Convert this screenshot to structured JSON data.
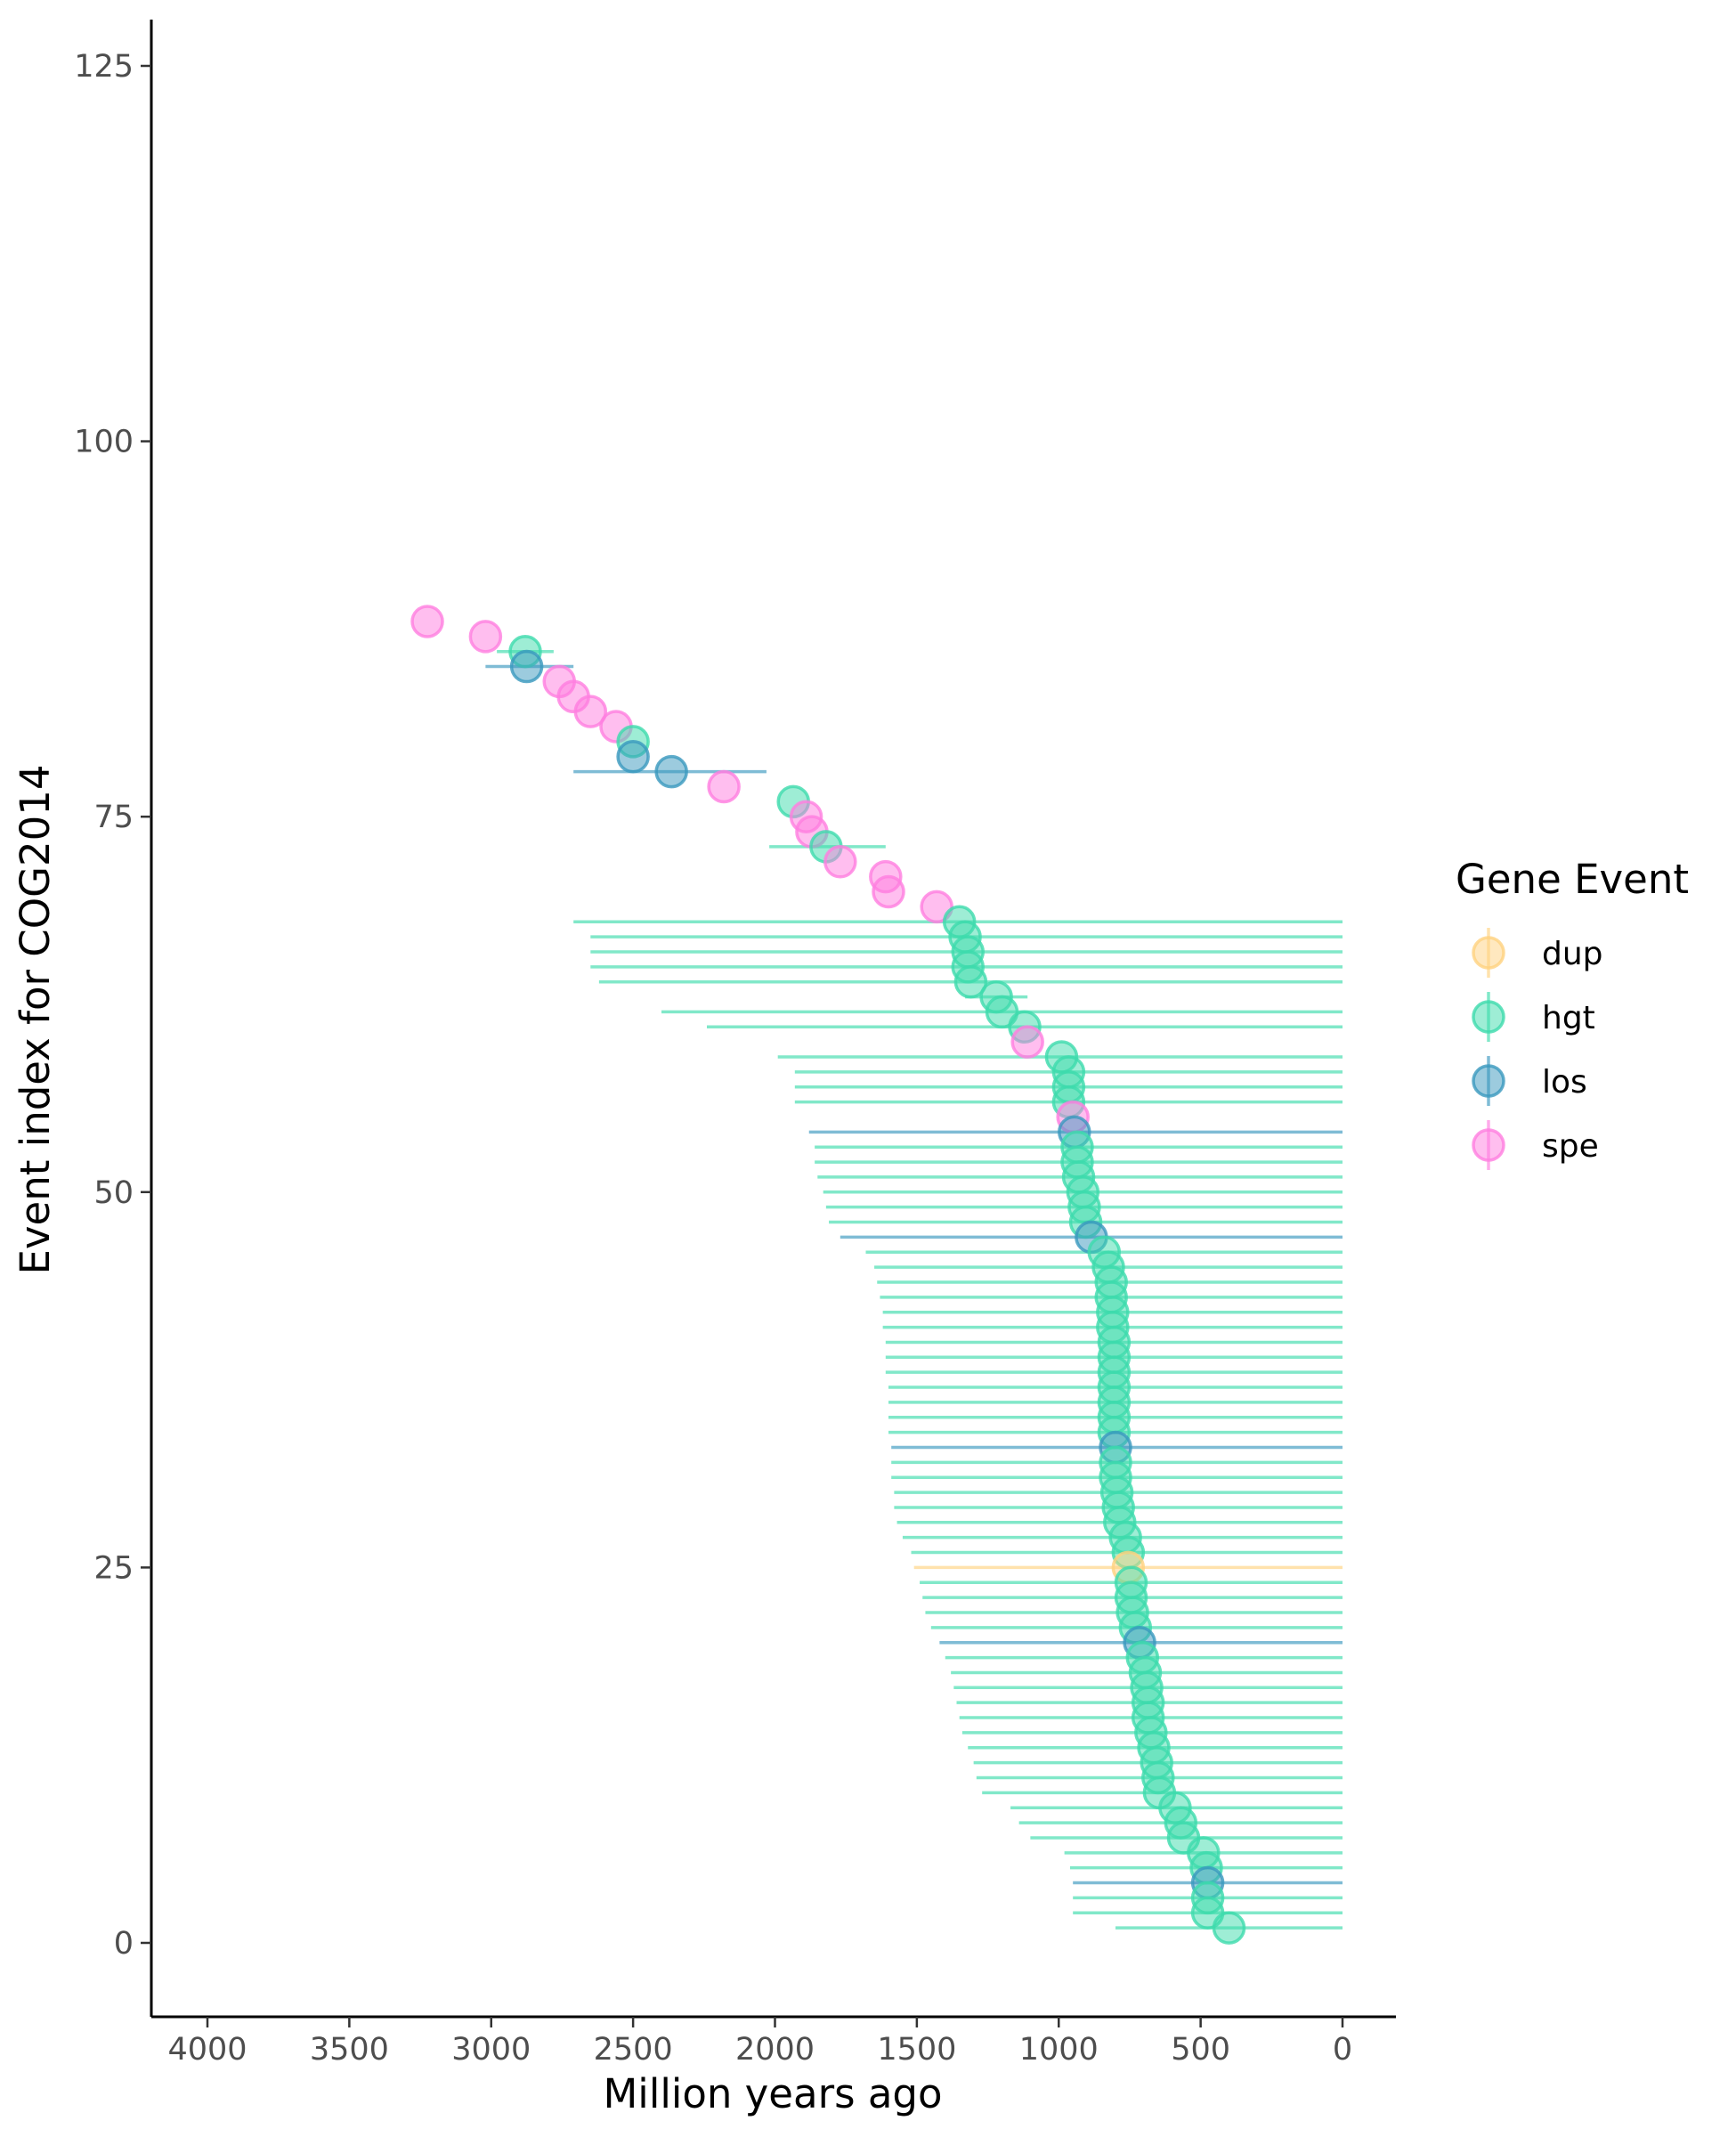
{
  "chart_data": {
    "type": "scatter",
    "title": "",
    "xlabel": "Million years ago",
    "ylabel": "Event index for COG2014",
    "xlim": [
      4200,
      -200
    ],
    "ylim": [
      -5,
      128
    ],
    "x_reversed": true,
    "x_ticks": [
      4000,
      3500,
      3000,
      2500,
      2000,
      1500,
      1000,
      500,
      0
    ],
    "x_tick_labels": [
      "4000",
      "3500",
      "3000",
      "2500",
      "2000",
      "1500",
      "1000",
      "500",
      "0"
    ],
    "y_ticks": [
      0,
      25,
      50,
      75,
      100,
      125
    ],
    "y_tick_labels": [
      "0",
      "25",
      "50",
      "75",
      "100",
      "125"
    ],
    "grid": false,
    "legend": {
      "title": "Gene Event",
      "position": "right",
      "entries": [
        {
          "key": "dup",
          "label": "dup",
          "color": "#FFD27F"
        },
        {
          "key": "hgt",
          "label": "hgt",
          "color": "#3DDBAC"
        },
        {
          "key": "los",
          "label": "los",
          "color": "#3A98BE"
        },
        {
          "key": "spe",
          "label": "spe",
          "color": "#FF7EE0"
        }
      ]
    },
    "points": [
      {
        "i": 88,
        "x": 3225,
        "type": "spe"
      },
      {
        "i": 87,
        "x": 3020,
        "type": "spe"
      },
      {
        "i": 86,
        "x": 2880,
        "type": "hgt",
        "xmin": 2780,
        "xmax": 2980
      },
      {
        "i": 85,
        "x": 2875,
        "type": "los",
        "xmin": 2710,
        "xmax": 3020
      },
      {
        "i": 84,
        "x": 2760,
        "type": "spe"
      },
      {
        "i": 83,
        "x": 2710,
        "type": "spe"
      },
      {
        "i": 82,
        "x": 2650,
        "type": "spe"
      },
      {
        "i": 81,
        "x": 2560,
        "type": "spe"
      },
      {
        "i": 80,
        "x": 2500,
        "type": "hgt"
      },
      {
        "i": 79,
        "x": 2500,
        "type": "los"
      },
      {
        "i": 78,
        "x": 2365,
        "type": "los",
        "xmin": 2030,
        "xmax": 2710
      },
      {
        "i": 77,
        "x": 2180,
        "type": "spe"
      },
      {
        "i": 76,
        "x": 1935,
        "type": "hgt"
      },
      {
        "i": 75,
        "x": 1890,
        "type": "spe"
      },
      {
        "i": 74,
        "x": 1870,
        "type": "spe"
      },
      {
        "i": 73,
        "x": 1820,
        "type": "hgt",
        "xmin": 1610,
        "xmax": 2020
      },
      {
        "i": 72,
        "x": 1770,
        "type": "spe"
      },
      {
        "i": 71,
        "x": 1610,
        "type": "spe"
      },
      {
        "i": 70,
        "x": 1600,
        "type": "spe"
      },
      {
        "i": 69,
        "x": 1430,
        "type": "spe"
      },
      {
        "i": 68,
        "x": 1350,
        "type": "hgt",
        "xmin": 0,
        "xmax": 2710
      },
      {
        "i": 67,
        "x": 1330,
        "type": "hgt",
        "xmin": 0,
        "xmax": 2650
      },
      {
        "i": 66,
        "x": 1320,
        "type": "hgt",
        "xmin": 0,
        "xmax": 2650
      },
      {
        "i": 65,
        "x": 1320,
        "type": "hgt",
        "xmin": 0,
        "xmax": 2650
      },
      {
        "i": 64,
        "x": 1310,
        "type": "hgt",
        "xmin": 0,
        "xmax": 2620
      },
      {
        "i": 63,
        "x": 1220,
        "type": "hgt",
        "xmin": 1110,
        "xmax": 1330
      },
      {
        "i": 62,
        "x": 1200,
        "type": "hgt",
        "xmin": 0,
        "xmax": 2400
      },
      {
        "i": 61,
        "x": 1120,
        "type": "hgt",
        "xmin": 0,
        "xmax": 2240
      },
      {
        "i": 60,
        "x": 1110,
        "type": "spe"
      },
      {
        "i": 59,
        "x": 990,
        "type": "hgt",
        "xmin": 0,
        "xmax": 1990
      },
      {
        "i": 58,
        "x": 965,
        "type": "hgt",
        "xmin": 0,
        "xmax": 1930
      },
      {
        "i": 57,
        "x": 965,
        "type": "hgt",
        "xmin": 0,
        "xmax": 1930
      },
      {
        "i": 56,
        "x": 965,
        "type": "hgt",
        "xmin": 0,
        "xmax": 1930
      },
      {
        "i": 55,
        "x": 950,
        "type": "spe"
      },
      {
        "i": 54,
        "x": 945,
        "type": "los",
        "xmin": 0,
        "xmax": 1880
      },
      {
        "i": 53,
        "x": 935,
        "type": "hgt",
        "xmin": 0,
        "xmax": 1860
      },
      {
        "i": 52,
        "x": 935,
        "type": "hgt",
        "xmin": 0,
        "xmax": 1860
      },
      {
        "i": 51,
        "x": 930,
        "type": "hgt",
        "xmin": 0,
        "xmax": 1850
      },
      {
        "i": 50,
        "x": 915,
        "type": "hgt",
        "xmin": 0,
        "xmax": 1830
      },
      {
        "i": 49,
        "x": 910,
        "type": "hgt",
        "xmin": 0,
        "xmax": 1820
      },
      {
        "i": 48,
        "x": 905,
        "type": "hgt",
        "xmin": 0,
        "xmax": 1810
      },
      {
        "i": 47,
        "x": 885,
        "type": "los",
        "xmin": 0,
        "xmax": 1770
      },
      {
        "i": 46,
        "x": 840,
        "type": "hgt",
        "xmin": 0,
        "xmax": 1680
      },
      {
        "i": 45,
        "x": 825,
        "type": "hgt",
        "xmin": 0,
        "xmax": 1650
      },
      {
        "i": 44,
        "x": 815,
        "type": "hgt",
        "xmin": 0,
        "xmax": 1640
      },
      {
        "i": 43,
        "x": 815,
        "type": "hgt",
        "xmin": 0,
        "xmax": 1630
      },
      {
        "i": 42,
        "x": 810,
        "type": "hgt",
        "xmin": 0,
        "xmax": 1620
      },
      {
        "i": 41,
        "x": 810,
        "type": "hgt",
        "xmin": 0,
        "xmax": 1620
      },
      {
        "i": 40,
        "x": 805,
        "type": "hgt",
        "xmin": 0,
        "xmax": 1610
      },
      {
        "i": 39,
        "x": 805,
        "type": "hgt",
        "xmin": 0,
        "xmax": 1610
      },
      {
        "i": 38,
        "x": 805,
        "type": "hgt",
        "xmin": 0,
        "xmax": 1610
      },
      {
        "i": 37,
        "x": 805,
        "type": "hgt",
        "xmin": 0,
        "xmax": 1600
      },
      {
        "i": 36,
        "x": 805,
        "type": "hgt",
        "xmin": 0,
        "xmax": 1600
      },
      {
        "i": 35,
        "x": 805,
        "type": "hgt",
        "xmin": 0,
        "xmax": 1600
      },
      {
        "i": 34,
        "x": 805,
        "type": "hgt",
        "xmin": 0,
        "xmax": 1600
      },
      {
        "i": 33,
        "x": 800,
        "type": "los",
        "xmin": 0,
        "xmax": 1590
      },
      {
        "i": 32,
        "x": 800,
        "type": "hgt",
        "xmin": 0,
        "xmax": 1590
      },
      {
        "i": 31,
        "x": 800,
        "type": "hgt",
        "xmin": 0,
        "xmax": 1590
      },
      {
        "i": 30,
        "x": 795,
        "type": "hgt",
        "xmin": 0,
        "xmax": 1580
      },
      {
        "i": 29,
        "x": 790,
        "type": "hgt",
        "xmin": 0,
        "xmax": 1580
      },
      {
        "i": 28,
        "x": 785,
        "type": "hgt",
        "xmin": 0,
        "xmax": 1570
      },
      {
        "i": 27,
        "x": 765,
        "type": "hgt",
        "xmin": 0,
        "xmax": 1550
      },
      {
        "i": 26,
        "x": 755,
        "type": "hgt",
        "xmin": 0,
        "xmax": 1520
      },
      {
        "i": 25,
        "x": 755,
        "type": "dup",
        "xmin": 0,
        "xmax": 1510
      },
      {
        "i": 24,
        "x": 745,
        "type": "hgt",
        "xmin": 0,
        "xmax": 1490
      },
      {
        "i": 23,
        "x": 745,
        "type": "hgt",
        "xmin": 0,
        "xmax": 1480
      },
      {
        "i": 22,
        "x": 740,
        "type": "hgt",
        "xmin": 0,
        "xmax": 1470
      },
      {
        "i": 21,
        "x": 730,
        "type": "hgt",
        "xmin": 0,
        "xmax": 1450
      },
      {
        "i": 20,
        "x": 715,
        "type": "los",
        "xmin": 0,
        "xmax": 1420
      },
      {
        "i": 19,
        "x": 705,
        "type": "hgt",
        "xmin": 0,
        "xmax": 1400
      },
      {
        "i": 18,
        "x": 695,
        "type": "hgt",
        "xmin": 0,
        "xmax": 1380
      },
      {
        "i": 17,
        "x": 690,
        "type": "hgt",
        "xmin": 0,
        "xmax": 1370
      },
      {
        "i": 16,
        "x": 685,
        "type": "hgt",
        "xmin": 0,
        "xmax": 1360
      },
      {
        "i": 15,
        "x": 685,
        "type": "hgt",
        "xmin": 0,
        "xmax": 1350
      },
      {
        "i": 14,
        "x": 675,
        "type": "hgt",
        "xmin": 0,
        "xmax": 1340
      },
      {
        "i": 13,
        "x": 665,
        "type": "hgt",
        "xmin": 0,
        "xmax": 1320
      },
      {
        "i": 12,
        "x": 655,
        "type": "hgt",
        "xmin": 0,
        "xmax": 1300
      },
      {
        "i": 11,
        "x": 650,
        "type": "hgt",
        "xmin": 0,
        "xmax": 1290
      },
      {
        "i": 10,
        "x": 645,
        "type": "hgt",
        "xmin": 0,
        "xmax": 1270
      },
      {
        "i": 9,
        "x": 590,
        "type": "hgt",
        "xmin": 0,
        "xmax": 1170
      },
      {
        "i": 8,
        "x": 570,
        "type": "hgt",
        "xmin": 0,
        "xmax": 1140
      },
      {
        "i": 7,
        "x": 560,
        "type": "hgt",
        "xmin": 0,
        "xmax": 1100
      },
      {
        "i": 6,
        "x": 490,
        "type": "hgt",
        "xmin": 0,
        "xmax": 980
      },
      {
        "i": 5,
        "x": 480,
        "type": "hgt",
        "xmin": 0,
        "xmax": 960
      },
      {
        "i": 4,
        "x": 475,
        "type": "los",
        "xmin": 0,
        "xmax": 950
      },
      {
        "i": 3,
        "x": 475,
        "type": "hgt",
        "xmin": 0,
        "xmax": 950
      },
      {
        "i": 2,
        "x": 475,
        "type": "hgt",
        "xmin": 0,
        "xmax": 950
      },
      {
        "i": 1,
        "x": 400,
        "type": "hgt",
        "xmin": 0,
        "xmax": 800
      }
    ]
  }
}
